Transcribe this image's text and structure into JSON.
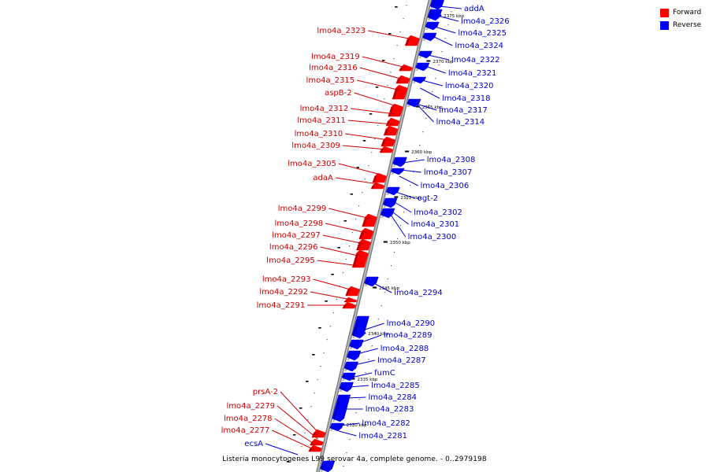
{
  "colors": {
    "forward": "#ff0000",
    "reverse": "#0000ff",
    "forward_text": "#cc0000",
    "reverse_text": "#0000cc"
  },
  "legend": {
    "forward_label": "Forward",
    "reverse_label": "Reverse"
  },
  "caption": "Listeria monocytogenes L99 serovar 4a, complete genome. - 0..2979198",
  "kbp_labels": [
    "2375 kbp",
    "2370 kbp",
    "2365 kbp",
    "2360 kbp",
    "2355 kbp",
    "2350 kbp",
    "2345 kbp",
    "2340 kbp",
    "2335 kbp",
    "2330 kbp"
  ],
  "forward_genes": [
    "lmo4a_2323",
    "lmo4a_2319",
    "lmo4a_2316",
    "lmo4a_2315",
    "aspB-2",
    "lmo4a_2312",
    "lmo4a_2311",
    "lmo4a_2310",
    "lmo4a_2309",
    "lmo4a_2305",
    "adaA",
    "lmo4a_2299",
    "lmo4a_2298",
    "lmo4a_2297",
    "lmo4a_2296",
    "lmo4a_2295",
    "lmo4a_2293",
    "lmo4a_2292",
    "lmo4a_2291",
    "prsA-2",
    "lmo4a_2279",
    "lmo4a_2278",
    "lmo4a_2277"
  ],
  "reverse_genes": [
    "addA",
    "lmo4a_2326",
    "lmo4a_2325",
    "lmo4a_2324",
    "lmo4a_2322",
    "lmo4a_2321",
    "lmo4a_2320",
    "lmo4a_2318",
    "lmo4a_2317",
    "lmo4a_2314",
    "lmo4a_2308",
    "lmo4a_2307",
    "lmo4a_2306",
    "ogt-2",
    "lmo4a_2302",
    "lmo4a_2301",
    "lmo4a_2300",
    "lmo4a_2294",
    "lmo4a_2290",
    "lmo4a_2289",
    "lmo4a_2288",
    "lmo4a_2287",
    "fumC",
    "lmo4a_2285",
    "lmo4a_2284",
    "lmo4a_2283",
    "lmo4a_2282",
    "lmo4a_2281",
    "ecsA"
  ]
}
